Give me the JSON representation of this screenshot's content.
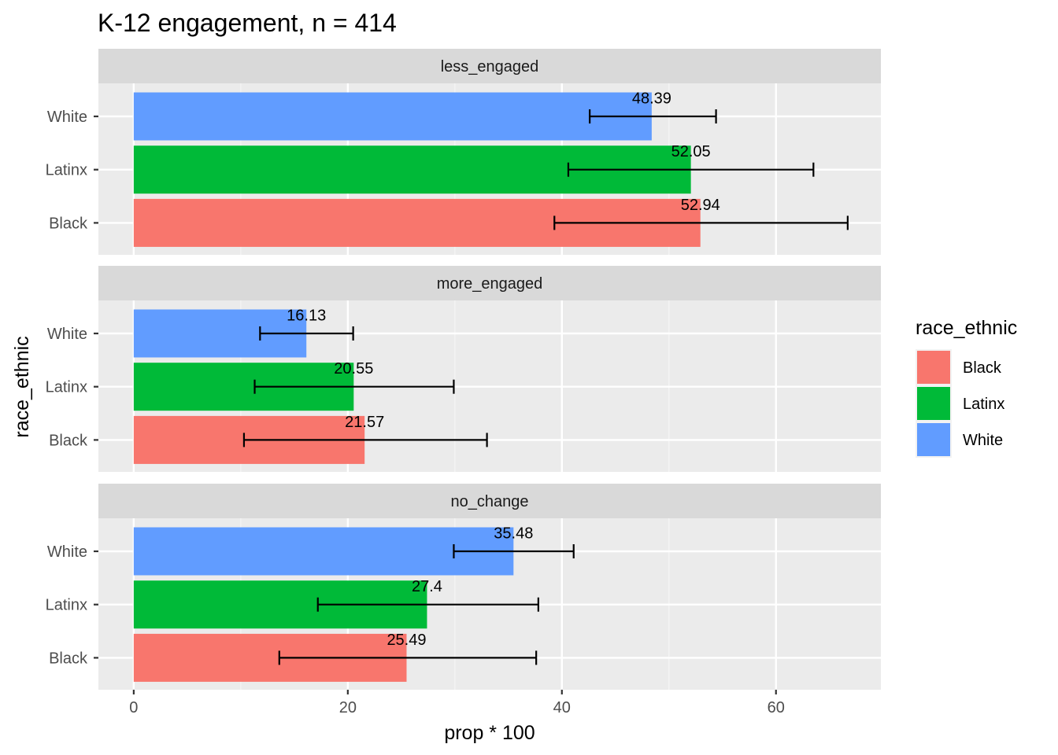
{
  "chart_data": {
    "type": "bar",
    "orientation": "horizontal",
    "title": "K-12 engagement, n = 414",
    "xlabel": "prop * 100",
    "ylabel": "race_ethnic",
    "xlim": [
      -3.3,
      69.8
    ],
    "xticks": [
      0,
      20,
      40,
      60
    ],
    "grid": true,
    "legend": {
      "title": "race_ethnic",
      "position": "right",
      "entries": [
        "Black",
        "Latinx",
        "White"
      ]
    },
    "colors": {
      "Black": "#F8766D",
      "Latinx": "#00BA38",
      "White": "#619CFF"
    },
    "categories": [
      "White",
      "Latinx",
      "Black"
    ],
    "facets": [
      {
        "name": "less_engaged",
        "bars": [
          {
            "group": "White",
            "value": 48.39,
            "label": "48.39",
            "err_low": 42.6,
            "err_high": 54.4
          },
          {
            "group": "Latinx",
            "value": 52.05,
            "label": "52.05",
            "err_low": 40.6,
            "err_high": 63.5
          },
          {
            "group": "Black",
            "value": 52.94,
            "label": "52.94",
            "err_low": 39.3,
            "err_high": 66.7
          }
        ]
      },
      {
        "name": "more_engaged",
        "bars": [
          {
            "group": "White",
            "value": 16.13,
            "label": "16.13",
            "err_low": 11.8,
            "err_high": 20.5
          },
          {
            "group": "Latinx",
            "value": 20.55,
            "label": "20.55",
            "err_low": 11.3,
            "err_high": 29.9
          },
          {
            "group": "Black",
            "value": 21.57,
            "label": "21.57",
            "err_low": 10.3,
            "err_high": 33.0
          }
        ]
      },
      {
        "name": "no_change",
        "bars": [
          {
            "group": "White",
            "value": 35.48,
            "label": "35.48",
            "err_low": 29.9,
            "err_high": 41.1
          },
          {
            "group": "Latinx",
            "value": 27.4,
            "label": "27.4",
            "err_low": 17.2,
            "err_high": 37.8
          },
          {
            "group": "Black",
            "value": 25.49,
            "label": "25.49",
            "err_low": 13.6,
            "err_high": 37.6
          }
        ]
      }
    ]
  }
}
